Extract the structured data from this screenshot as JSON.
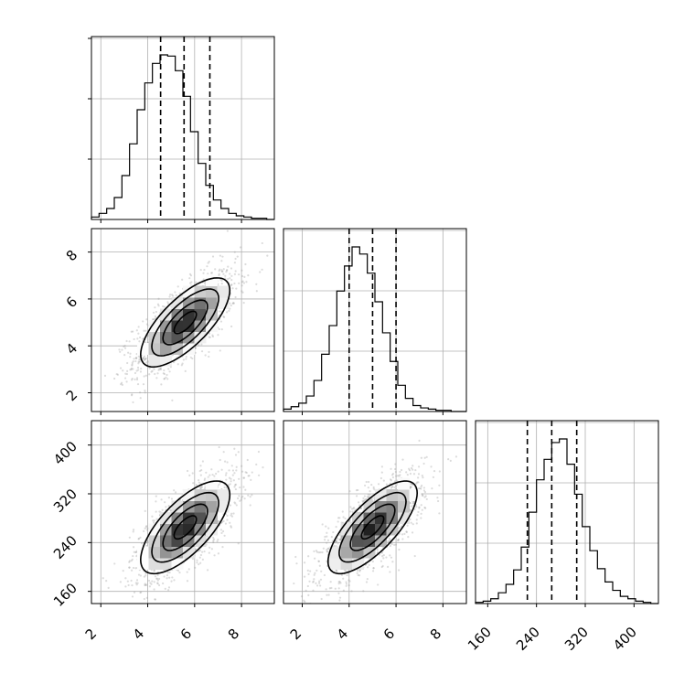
{
  "chart_data": {
    "type": "corner",
    "parameters": [
      {
        "name": "",
        "range": [
          1.6,
          9.4
        ],
        "ticks": [
          2,
          4,
          6,
          8
        ],
        "quantiles": [
          4.55,
          5.55,
          6.65
        ],
        "mean": 5.6,
        "sd": 0.95
      },
      {
        "name": "",
        "range": [
          1.2,
          9.0
        ],
        "ticks": [
          2,
          4,
          6,
          8
        ],
        "quantiles": [
          4.0,
          5.0,
          6.0
        ],
        "mean": 5.0,
        "sd": 0.95
      },
      {
        "name": "",
        "range": [
          140,
          440
        ],
        "ticks": [
          160,
          240,
          320,
          400
        ],
        "quantiles": [
          225,
          265,
          306
        ],
        "mean": 265,
        "sd": 38
      }
    ],
    "tick_labels": {
      "p0": [
        "2",
        "4",
        "6",
        "8"
      ],
      "p1": [
        "2",
        "4",
        "6",
        "8"
      ],
      "p2": [
        "160",
        "240",
        "320",
        "400"
      ]
    },
    "histograms": [
      {
        "bins": 24,
        "counts": [
          2,
          5,
          9,
          18,
          36,
          62,
          90,
          112,
          128,
          135,
          134,
          122,
          101,
          72,
          46,
          28,
          16,
          9,
          5,
          3,
          2,
          1,
          1,
          0
        ]
      },
      {
        "bins": 24,
        "counts": [
          2,
          4,
          7,
          13,
          26,
          48,
          72,
          101,
          122,
          138,
          132,
          116,
          92,
          66,
          42,
          22,
          11,
          5,
          3,
          2,
          1,
          1,
          0,
          0
        ]
      },
      {
        "bins": 24,
        "counts": [
          1,
          2,
          4,
          9,
          16,
          28,
          47,
          76,
          103,
          120,
          134,
          137,
          116,
          91,
          64,
          44,
          29,
          18,
          11,
          6,
          4,
          2,
          1,
          0
        ]
      }
    ],
    "correlations": {
      "p1_p0": 0.72,
      "p2_p0": 0.7,
      "p2_p1": 0.74
    },
    "grid": true,
    "quantile_lines": true
  }
}
